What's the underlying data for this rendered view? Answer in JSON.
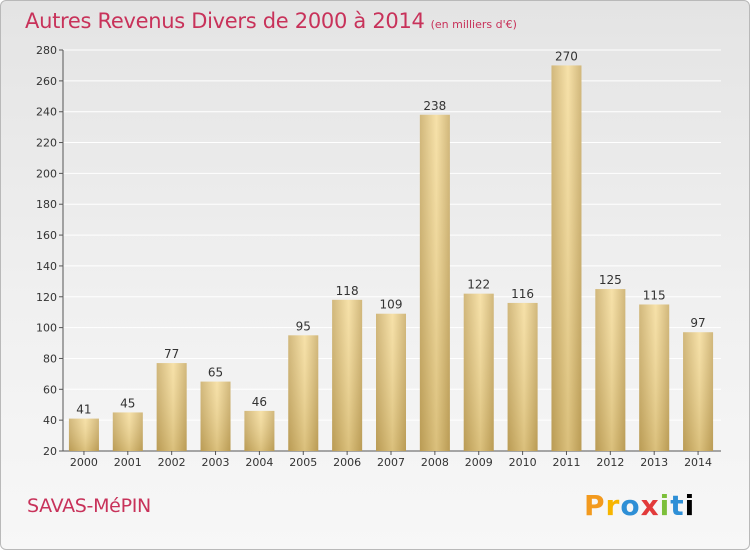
{
  "title": "Autres Revenus Divers de 2000 à 2014",
  "unit": "(en milliers d'€)",
  "place": "SAVAS-MéPIN",
  "logo": {
    "letters": [
      "P",
      "r",
      "o",
      "x",
      "i",
      "t",
      "i"
    ]
  },
  "colors": {
    "title": "#c8325a",
    "bar_light": "#f5dc9a",
    "bar_dark": "#c9ab65"
  },
  "chart_data": {
    "type": "bar",
    "categories": [
      "2000",
      "2001",
      "2002",
      "2003",
      "2004",
      "2005",
      "2006",
      "2007",
      "2008",
      "2009",
      "2010",
      "2011",
      "2012",
      "2013",
      "2014"
    ],
    "values": [
      41,
      45,
      77,
      65,
      46,
      95,
      118,
      109,
      238,
      122,
      116,
      270,
      125,
      115,
      97
    ],
    "ylim": [
      20,
      280
    ],
    "yticks": [
      20,
      40,
      60,
      80,
      100,
      120,
      140,
      160,
      180,
      200,
      220,
      240,
      260,
      280
    ],
    "grid": true,
    "data_labels": true
  }
}
